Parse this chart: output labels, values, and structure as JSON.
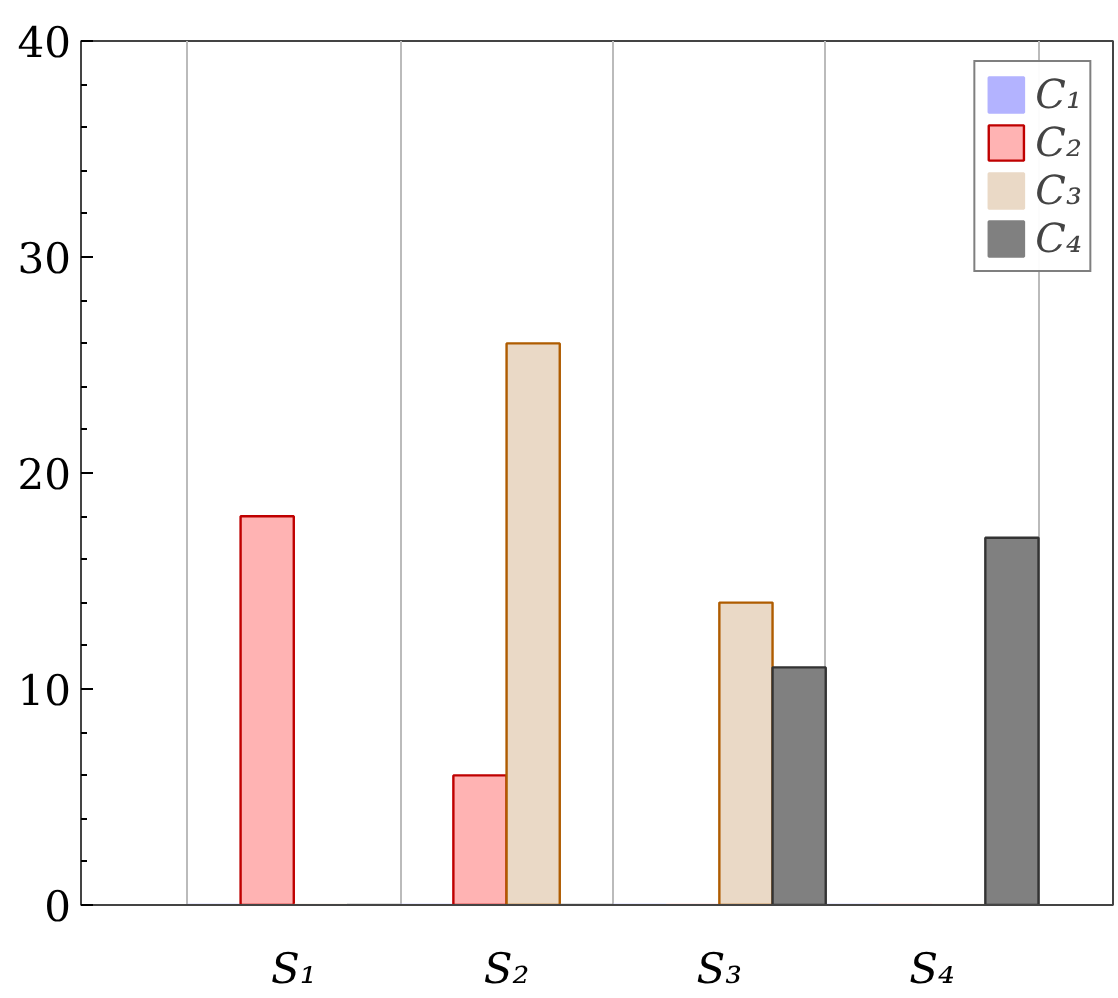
{
  "chart_data": {
    "type": "bar",
    "categories": [
      "S₁",
      "S₂",
      "S₃",
      "S₄"
    ],
    "series": [
      {
        "name": "C₁",
        "color": "#b3b3ff",
        "values": [
          0,
          0,
          0,
          0
        ]
      },
      {
        "name": "C₂",
        "color": "#ffb3b3",
        "values": [
          18,
          6,
          0,
          0
        ]
      },
      {
        "name": "C₃",
        "color": "#ead9c6",
        "values": [
          0,
          26,
          14,
          0
        ]
      },
      {
        "name": "C₄",
        "color": "#808080",
        "values": [
          0,
          0,
          11,
          17
        ]
      }
    ],
    "ylim": [
      0,
      40
    ],
    "yticks": [
      0,
      10,
      20,
      30,
      40
    ],
    "grid": "x",
    "legend": "top right"
  }
}
